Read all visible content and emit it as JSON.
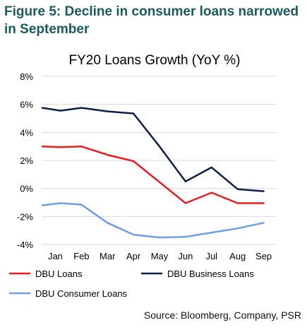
{
  "figure": {
    "heading": "Figure 5:  Decline in consumer loans narrowed in September",
    "source": "Source: Bloomberg, Company, PSR"
  },
  "colors": {
    "heading": "#1a5a63",
    "dbu_loans": "#ee1c1c",
    "dbu_business_loans": "#0f1f4b",
    "dbu_consumer_loans": "#6d9eeb",
    "gridline": "#d9d9d9"
  },
  "chart_data": {
    "type": "line",
    "title": "FY20 Loans Growth (YoY %)",
    "categories": [
      "Jan",
      "Feb",
      "Mar",
      "Apr",
      "May",
      "Jun",
      "Jul",
      "Aug",
      "Sep"
    ],
    "x": [
      0.0,
      0.7,
      1.5,
      2.5,
      3.5,
      4.5,
      5.5,
      6.5,
      7.5,
      8.5
    ],
    "ylim": [
      -4,
      8
    ],
    "yticks": [
      -4,
      -2,
      0,
      2,
      4,
      6,
      8
    ],
    "ytick_labels": [
      "-4%",
      "-2%",
      "0%",
      "2%",
      "4%",
      "6%",
      "8%"
    ],
    "xlabel": "",
    "ylabel": "",
    "grid": "horizontal",
    "legend": "bottom",
    "series": [
      {
        "name": "DBU Loans",
        "color": "#ee1c1c",
        "values": [
          3.0,
          2.95,
          3.0,
          2.4,
          1.95,
          0.45,
          -1.05,
          -0.3,
          -1.05,
          -1.05
        ]
      },
      {
        "name": "DBU Business Loans",
        "color": "#0f1f4b",
        "values": [
          5.75,
          5.55,
          5.75,
          5.5,
          5.35,
          3.0,
          0.5,
          1.5,
          -0.05,
          -0.2
        ]
      },
      {
        "name": "DBU Consumer Loans",
        "color": "#6d9eeb",
        "values": [
          -1.2,
          -1.05,
          -1.15,
          -2.45,
          -3.3,
          -3.5,
          -3.45,
          -3.15,
          -2.85,
          -2.45
        ]
      }
    ]
  }
}
